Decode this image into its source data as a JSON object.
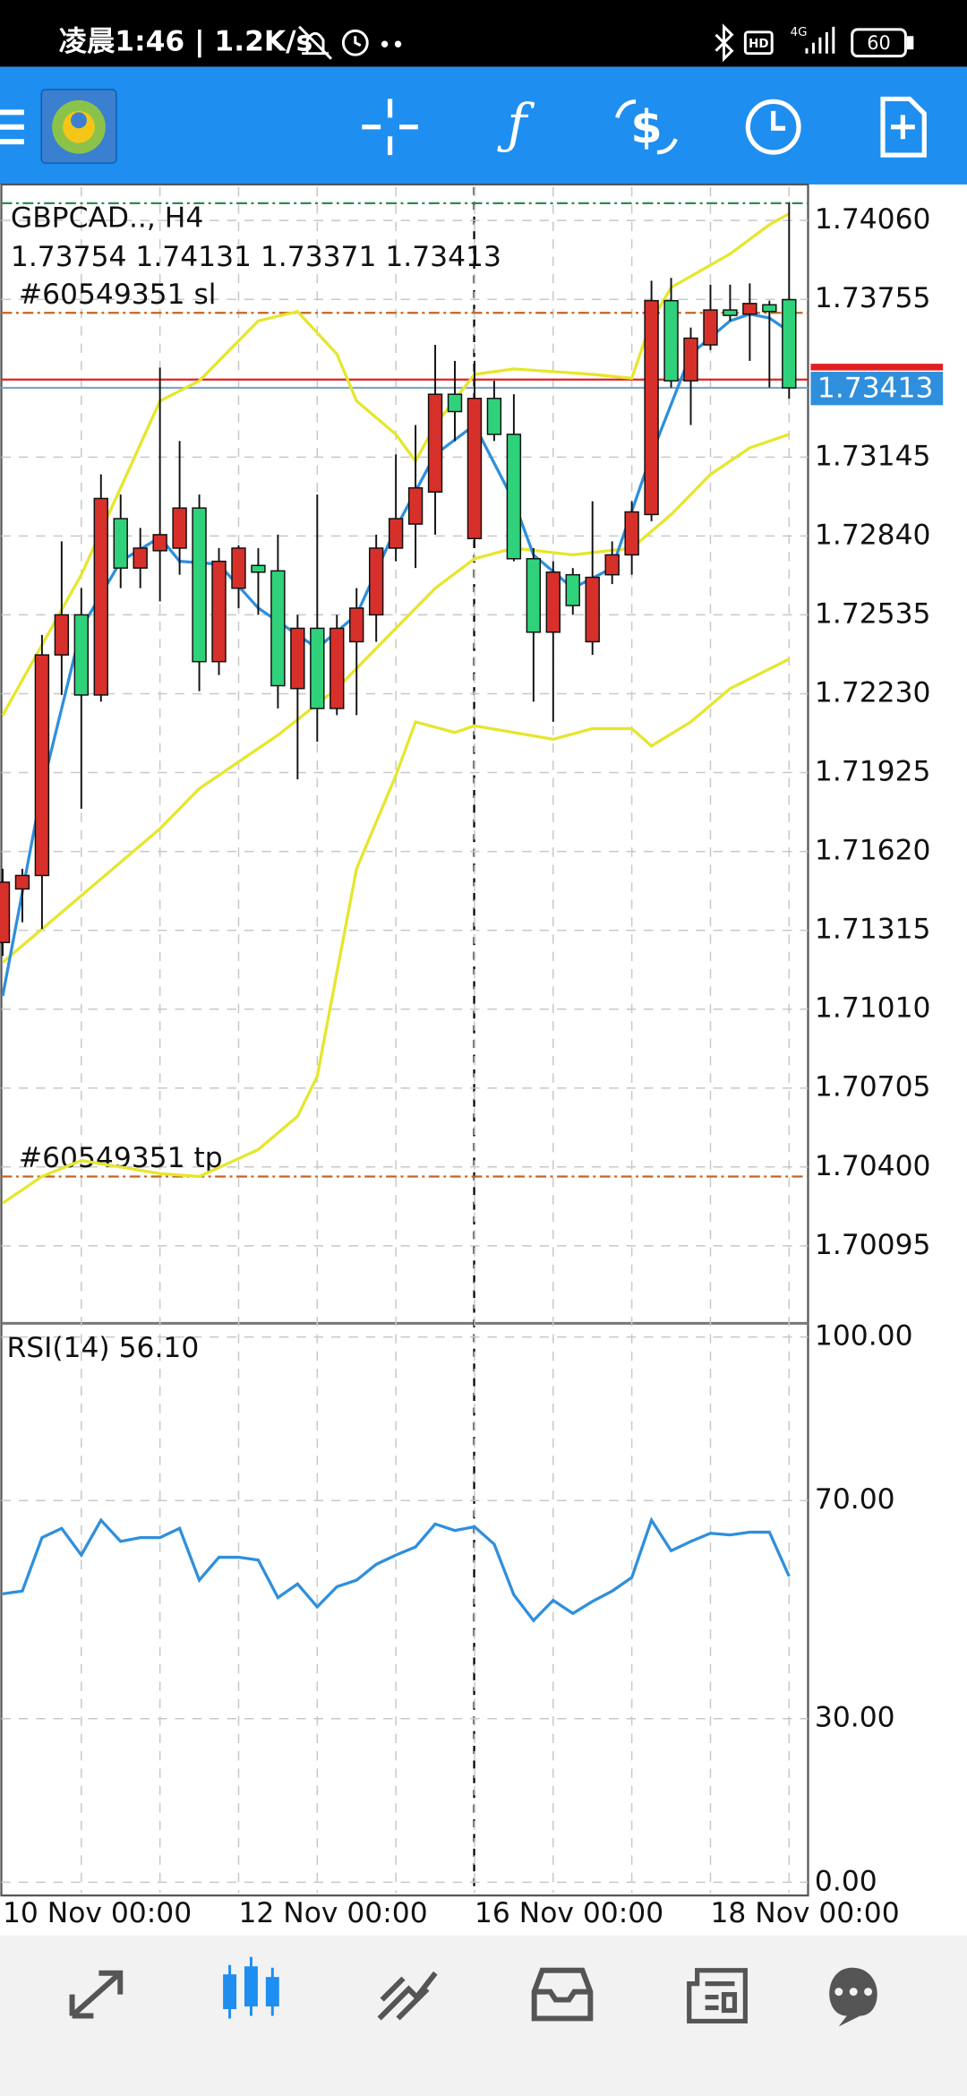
{
  "status_bar": {
    "time": "凌晨1:46 | 1.2K/s",
    "hd": "HD",
    "network": "4G",
    "battery": "60"
  },
  "chart_data": [
    {
      "type": "candlestick",
      "title": "GBPCAD.., H4",
      "subtitle": "1.73754 1.74131 1.73371 1.73413",
      "categories": [
        "10 Nov 00:00",
        null,
        null,
        null,
        null,
        null,
        null,
        null,
        null,
        null,
        null,
        null,
        "12 Nov 00:00",
        null,
        null,
        null,
        null,
        null,
        null,
        null,
        null,
        null,
        null,
        null,
        "16 Nov 00:00",
        null,
        null,
        null,
        null,
        null,
        null,
        null,
        null,
        null,
        null,
        null,
        "18 Nov 00:00",
        null,
        null,
        null,
        null
      ],
      "open": [
        1.71268,
        1.71475,
        1.71527,
        1.7238,
        1.72535,
        1.72225,
        1.72907,
        1.72716,
        1.72783,
        1.72793,
        1.72948,
        1.72354,
        1.72638,
        1.72726,
        1.72705,
        1.7225,
        1.72483,
        1.72173,
        1.72431,
        1.72535,
        1.72793,
        1.72886,
        1.7301,
        1.73388,
        1.7283,
        1.73372,
        1.73233,
        1.72752,
        1.72468,
        1.7269,
        1.72431,
        1.7269,
        1.72767,
        1.72923,
        1.7375,
        1.7344,
        1.73579,
        1.73714,
        1.73698,
        1.73734,
        1.73754
      ],
      "high": [
        1.71553,
        1.71553,
        1.72457,
        1.72819,
        1.72638,
        1.73078,
        1.73,
        1.72871,
        1.73491,
        1.73207,
        1.73,
        1.72793,
        1.72804,
        1.72793,
        1.72845,
        1.72535,
        1.73,
        1.72535,
        1.72638,
        1.72845,
        1.73155,
        1.73269,
        1.73579,
        1.73517,
        1.73517,
        1.7344,
        1.73388,
        1.72793,
        1.72742,
        1.72716,
        1.72974,
        1.72819,
        1.72974,
        1.73827,
        1.73838,
        1.73646,
        1.73812,
        1.73812,
        1.73817,
        1.7375,
        1.74131
      ],
      "low": [
        1.71216,
        1.71346,
        1.7132,
        1.72225,
        1.71785,
        1.72199,
        1.72638,
        1.72638,
        1.72587,
        1.7269,
        1.7224,
        1.72302,
        1.72561,
        1.72535,
        1.72173,
        1.71899,
        1.72044,
        1.72147,
        1.72147,
        1.72431,
        1.72742,
        1.72716,
        1.72845,
        1.73207,
        1.72793,
        1.73207,
        1.72742,
        1.72199,
        1.72121,
        1.72535,
        1.7238,
        1.72654,
        1.7269,
        1.72897,
        1.73414,
        1.73269,
        1.73559,
        1.73672,
        1.73517,
        1.73414,
        1.73371
      ],
      "close": [
        1.71501,
        1.71527,
        1.7238,
        1.72535,
        1.72225,
        1.72985,
        1.72716,
        1.72793,
        1.72845,
        1.72948,
        1.72354,
        1.72742,
        1.72793,
        1.727,
        1.72261,
        1.72483,
        1.72173,
        1.72483,
        1.72561,
        1.72793,
        1.72907,
        1.73026,
        1.73388,
        1.73321,
        1.73372,
        1.73233,
        1.72752,
        1.72468,
        1.727,
        1.72571,
        1.7268,
        1.72767,
        1.72933,
        1.7375,
        1.7344,
        1.73605,
        1.73714,
        1.73693,
        1.73739,
        1.73708,
        1.73413
      ],
      "up_color": "#d7302a",
      "down_color": "#2fd27a",
      "overlays": [
        {
          "color": "#e6e62e",
          "x": [
            0,
            4,
            8,
            10,
            13,
            15,
            17,
            18,
            20,
            21,
            22,
            24,
            26,
            30,
            32,
            33,
            34,
            37,
            39,
            40
          ],
          "values": [
            1.72147,
            1.7269,
            1.73362,
            1.7344,
            1.73672,
            1.73708,
            1.73543,
            1.73362,
            1.73233,
            1.73129,
            1.73269,
            1.73465,
            1.73486,
            1.73465,
            1.7345,
            1.73672,
            1.73801,
            1.73931,
            1.74044,
            1.74086
          ]
        },
        {
          "color": "#e6e62e",
          "x": [
            0,
            4,
            8,
            10,
            14,
            17,
            20,
            22,
            24,
            26,
            29,
            32,
            34,
            36,
            38,
            40
          ],
          "values": [
            1.71191,
            1.71449,
            1.71708,
            1.71863,
            1.7207,
            1.7225,
            1.72483,
            1.72638,
            1.72752,
            1.72793,
            1.72767,
            1.72793,
            1.72923,
            1.73078,
            1.73181,
            1.73233
          ]
        },
        {
          "color": "#e6e62e",
          "x": [
            0,
            2,
            4,
            8,
            10,
            13,
            15,
            16,
            18,
            20,
            21,
            23,
            24,
            28,
            30,
            32,
            33,
            35,
            37,
            40
          ],
          "values": [
            1.7026,
            1.70363,
            1.70425,
            1.70374,
            1.70363,
            1.70467,
            1.70596,
            1.70751,
            1.71553,
            1.71914,
            1.72121,
            1.7208,
            1.72106,
            1.72054,
            1.72095,
            1.72095,
            1.72028,
            1.72121,
            1.7225,
            1.72364
          ]
        },
        {
          "color": "#2f8fdc",
          "x": [
            0,
            2,
            4,
            6,
            8,
            9,
            11,
            13,
            16,
            18,
            20,
            22,
            24,
            26,
            27,
            29,
            31,
            33,
            35,
            37,
            38,
            39,
            40
          ],
          "values": [
            1.71061,
            1.71863,
            1.72483,
            1.72742,
            1.72835,
            1.72742,
            1.72731,
            1.72561,
            1.72406,
            1.72535,
            1.72871,
            1.73155,
            1.73269,
            1.72974,
            1.72767,
            1.72638,
            1.72716,
            1.73155,
            1.73543,
            1.73672,
            1.73698,
            1.73683,
            1.73631
          ]
        }
      ],
      "levels": [
        {
          "label": "#60549351 sl",
          "value": 1.73703,
          "color": "#c8641e"
        },
        {
          "label": "#60549351 tp",
          "value": 1.70363,
          "color": "#c8641e"
        }
      ],
      "high_line": {
        "value": 1.74127,
        "color": "#2e8b57"
      },
      "ask_line": {
        "value": 1.73445,
        "color": "#e02020"
      },
      "bid": 1.73413,
      "bid_color": "#2f8fdc",
      "ylim": [
        1.69795,
        1.74189
      ],
      "yticks": [
        {
          "value": 1.7406,
          "label": "1.74060"
        },
        1.73755,
        1.73145,
        {
          "value": 1.7284,
          "label": "1.72840"
        },
        1.72535,
        {
          "value": 1.7223,
          "label": "1.72230"
        },
        1.71925,
        {
          "value": 1.7162,
          "label": "1.71620"
        },
        1.71315,
        {
          "value": 1.7101,
          "label": "1.71010"
        },
        1.70705,
        {
          "value": 1.704,
          "label": "1.70400"
        },
        1.70095
      ],
      "grid": true
    },
    {
      "type": "line",
      "title": "RSI(14) 56.10",
      "color": "#2f8fdc",
      "values": [
        52.9,
        53.4,
        63.2,
        64.9,
        60.0,
        66.4,
        62.5,
        63.2,
        63.2,
        64.9,
        55.4,
        59.6,
        59.6,
        59.1,
        52.2,
        54.7,
        50.5,
        54.2,
        55.4,
        58.3,
        60.0,
        61.5,
        65.7,
        64.5,
        65.2,
        62.0,
        52.7,
        48.0,
        51.7,
        49.3,
        51.5,
        53.4,
        55.9,
        66.4,
        60.8,
        62.5,
        64.0,
        63.7,
        64.2,
        64.2,
        56.1
      ],
      "ylim": [
        -1.7,
        102.5
      ],
      "yticks": [
        {
          "value": 100,
          "label": "100.00"
        },
        {
          "value": 70,
          "label": "70.00"
        },
        {
          "value": 30,
          "label": "30.00"
        },
        {
          "value": 0,
          "label": "0.00"
        }
      ],
      "grid": true
    }
  ]
}
